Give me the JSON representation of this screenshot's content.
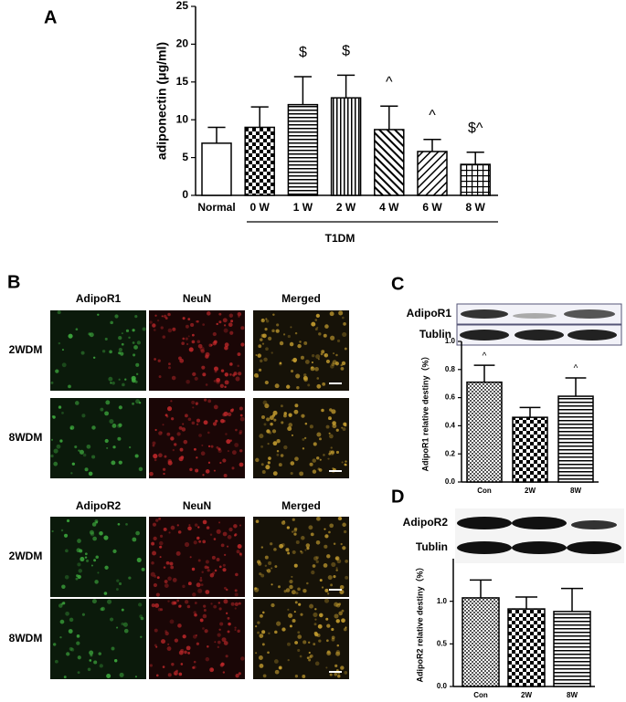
{
  "chart_data": [
    {
      "type": "bar",
      "panel": "A",
      "ylabel": "adiponectin (μg/ml)",
      "categories": [
        "Normal",
        "0 W",
        "1 W",
        "2 W",
        "4 W",
        "6 W",
        "8 W"
      ],
      "values": [
        6.9,
        9.0,
        12.0,
        12.9,
        8.7,
        5.8,
        4.1
      ],
      "errors": [
        2.1,
        2.7,
        3.7,
        3.0,
        3.1,
        1.6,
        1.6
      ],
      "annotations": [
        null,
        null,
        "$",
        "$",
        "^",
        "^",
        "$^"
      ],
      "group_label": "T1DM",
      "patterns": [
        "none",
        "checker",
        "hlines",
        "vlines",
        "diag-back",
        "diag-fwd",
        "grid"
      ],
      "ylim": [
        0,
        25
      ],
      "yticks": [
        0,
        5,
        10,
        15,
        20,
        25
      ]
    },
    {
      "type": "bar",
      "panel": "C",
      "blot_labels": [
        "AdipoR1",
        "Tublin"
      ],
      "ylabel": "AdipoR1 relative destiny（%）",
      "categories": [
        "Con",
        "2W",
        "8W"
      ],
      "values": [
        0.71,
        0.46,
        0.61
      ],
      "errors": [
        0.12,
        0.07,
        0.13
      ],
      "annotations": [
        "^",
        null,
        "^"
      ],
      "patterns": [
        "fine",
        "checker",
        "hlines"
      ],
      "ylim": [
        0,
        1.0
      ],
      "yticks": [
        {
          "value": 0,
          "label": "0.0"
        },
        0.2,
        0.4,
        0.6,
        0.8,
        {
          "value": 1,
          "label": "1.0"
        }
      ]
    },
    {
      "type": "bar",
      "panel": "D",
      "blot_labels": [
        "AdipoR2",
        "Tublin"
      ],
      "ylabel": "AdipoR2 relative destiny（%）",
      "categories": [
        "Con",
        "2W",
        "8W"
      ],
      "values": [
        1.04,
        0.91,
        0.88
      ],
      "errors": [
        0.21,
        0.14,
        0.27
      ],
      "annotations": [
        null,
        null,
        null
      ],
      "patterns": [
        "fine",
        "checker",
        "hlines"
      ],
      "ylim": [
        0,
        1.5
      ],
      "yticks": [
        {
          "value": 0,
          "label": "0.0"
        },
        0.5,
        {
          "value": 1,
          "label": "1.0"
        }
      ]
    }
  ],
  "panel_b": {
    "label": "B",
    "groups": [
      {
        "columns": [
          "AdipoR1",
          "NeuN",
          "Merged"
        ],
        "rows": [
          "2WDM",
          "8WDM"
        ]
      },
      {
        "columns": [
          "AdipoR2",
          "NeuN",
          "Merged"
        ],
        "rows": [
          "2WDM",
          "8WDM"
        ]
      }
    ]
  }
}
